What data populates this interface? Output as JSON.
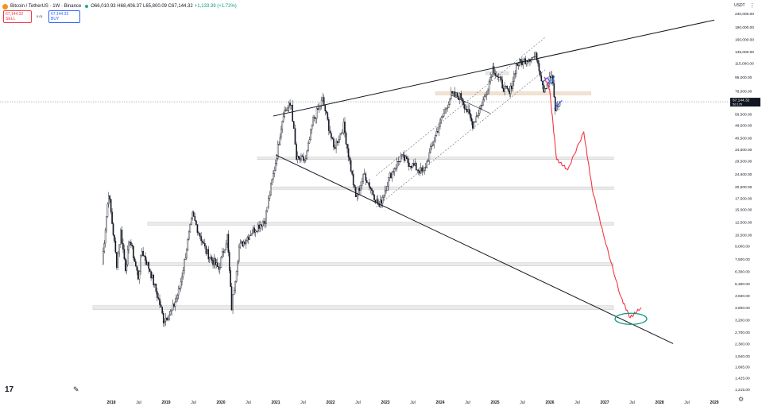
{
  "header": {
    "symbol": "Bitcoin / TetherUS · 1W · Binance",
    "ohlc": "O66,010.93 H68,406.37 L65,800.09 C67,144.32",
    "change": "+1,133.39 (+1.72%)",
    "sell_price": "67,144.32",
    "sell_label": "SELL",
    "buy_price": "67,144.33",
    "buy_label": "BUY",
    "spread": "0.01"
  },
  "currency": "USDT",
  "colors": {
    "candle": "#131722",
    "projection": "#f23645",
    "blue_marks": "#2962ff",
    "ellipse": "#089981",
    "zone": "#d9d9d9",
    "orange_zone": "#f3c89d",
    "price_label_bg": "#131722"
  },
  "chart_data": {
    "type": "line",
    "scale": "log",
    "title": "",
    "xlabel": "",
    "ylabel": "",
    "x_ticks": [
      "2018",
      "Jul",
      "2019",
      "Jul",
      "2020",
      "Jul",
      "2021",
      "Jul",
      "2022",
      "Jul",
      "2023",
      "Jul",
      "2024",
      "Jul",
      "2025",
      "Jul",
      "2026",
      "Jul",
      "2027",
      "Jul",
      "2028",
      "Jul",
      "2029"
    ],
    "y_ticks": [
      "230,000.00",
      "190,000.00",
      "160,000.00",
      "135,000.00",
      "115,000.00",
      "95,000.00",
      "78,000.00",
      "67,144.32",
      "56,500.00",
      "48,500.00",
      "40,500.00",
      "34,500.00",
      "29,500.00",
      "24,500.00",
      "20,500.00",
      "17,500.00",
      "15,000.00",
      "12,500.00",
      "10,500.00",
      "9,000.00",
      "7,500.00",
      "6,300.00",
      "5,300.00",
      "4,500.00",
      "3,800.00",
      "3,200.00",
      "2,700.00",
      "2,300.00",
      "1,940.00",
      "1,665.00",
      "1,425.00",
      "1,215.00"
    ],
    "current_price": "67,144.32",
    "current_sub": "5d 17h",
    "ylim": [
      1215,
      230000
    ],
    "series": [
      {
        "type": "candles",
        "values": [
          [
            "2017-11-01",
            7000
          ],
          [
            "2017-12-15",
            19000
          ],
          [
            "2018-02-06",
            7000
          ],
          [
            "2018-03-05",
            11000
          ],
          [
            "2018-04-06",
            6600
          ],
          [
            "2018-05-05",
            9900
          ],
          [
            "2018-06-29",
            5800
          ],
          [
            "2018-07-25",
            8400
          ],
          [
            "2018-09-15",
            6400
          ],
          [
            "2018-11-20",
            4000
          ],
          [
            "2018-12-15",
            3200
          ],
          [
            "2019-02-08",
            3600
          ],
          [
            "2019-04-02",
            5000
          ],
          [
            "2019-06-26",
            13800
          ],
          [
            "2019-09-25",
            8300
          ],
          [
            "2019-12-18",
            6500
          ],
          [
            "2020-02-13",
            10300
          ],
          [
            "2020-03-13",
            3800
          ],
          [
            "2020-05-01",
            8800
          ],
          [
            "2020-07-27",
            11000
          ],
          [
            "2020-10-21",
            13000
          ],
          [
            "2020-12-31",
            29000
          ],
          [
            "2021-02-21",
            58000
          ],
          [
            "2021-04-14",
            64800
          ],
          [
            "2021-05-19",
            30000
          ],
          [
            "2021-07-20",
            29800
          ],
          [
            "2021-09-07",
            52000
          ],
          [
            "2021-11-10",
            69000
          ],
          [
            "2022-01-22",
            35000
          ],
          [
            "2022-03-29",
            48000
          ],
          [
            "2022-06-18",
            17600
          ],
          [
            "2022-08-15",
            24400
          ],
          [
            "2022-11-21",
            15500
          ],
          [
            "2023-01-30",
            23800
          ],
          [
            "2023-04-14",
            31000
          ],
          [
            "2023-09-11",
            24900
          ],
          [
            "2023-12-08",
            44000
          ],
          [
            "2024-03-14",
            73800
          ],
          [
            "2024-05-20",
            71900
          ],
          [
            "2024-08-05",
            49000
          ],
          [
            "2024-10-29",
            73500
          ],
          [
            "2024-12-17",
            108000
          ],
          [
            "2025-02-26",
            82000
          ],
          [
            "2025-04-07",
            74500
          ],
          [
            "2025-05-22",
            112000
          ],
          [
            "2025-08-14",
            124000
          ],
          [
            "2025-10-06",
            126000
          ],
          [
            "2025-11-21",
            80500
          ],
          [
            "2026-01-14",
            97000
          ],
          [
            "2026-02-06",
            60000
          ],
          [
            "2026-03-08",
            67144
          ]
        ]
      },
      {
        "type": "projection",
        "values": [
          [
            "2025-11-25",
            95000
          ],
          [
            "2025-12-30",
            80000
          ],
          [
            "2026-02-15",
            30000
          ],
          [
            "2026-04-30",
            26000
          ],
          [
            "2026-08-15",
            44000
          ],
          [
            "2026-10-10",
            20000
          ],
          [
            "2026-12-30",
            10000
          ],
          [
            "2027-04-15",
            4500
          ],
          [
            "2027-06-20",
            3300
          ],
          [
            "2027-09-01",
            3800
          ]
        ]
      },
      {
        "type": "resistance_trendline",
        "values": [
          [
            "2020-12-15",
            55000
          ],
          [
            "2029-01-01",
            210000
          ]
        ]
      },
      {
        "type": "support_trendline",
        "values": [
          [
            "2021-01-01",
            32000
          ],
          [
            "2028-04-01",
            2300
          ]
        ]
      },
      {
        "type": "channel_lower",
        "values": [
          [
            "2022-11-01",
            15500
          ],
          [
            "2025-12-01",
            105000
          ]
        ]
      },
      {
        "type": "channel_upper",
        "values": [
          [
            "2022-11-01",
            24000
          ],
          [
            "2025-12-01",
            165000
          ]
        ]
      }
    ],
    "zones": [
      {
        "label": "zone-1",
        "range": [
          3700,
          3900
        ],
        "x_range": [
          "2017-09-01",
          "2027-03-01"
        ]
      },
      {
        "label": "zone-2",
        "range": [
          6800,
          7100
        ],
        "x_range": [
          "2018-04-01",
          "2027-03-01"
        ]
      },
      {
        "label": "zone-3",
        "range": [
          12000,
          12500
        ],
        "x_range": [
          "2018-09-01",
          "2027-03-01"
        ]
      },
      {
        "label": "zone-4",
        "range": [
          19800,
          20500
        ],
        "x_range": [
          "2020-12-01",
          "2027-03-01"
        ]
      },
      {
        "label": "zone-5",
        "range": [
          30000,
          31000
        ],
        "x_range": [
          "2020-09-01",
          "2027-03-01"
        ]
      },
      {
        "label": "zone-6",
        "range": [
          74000,
          77000
        ],
        "x_range": [
          "2023-12-01",
          "2026-10-01"
        ]
      },
      {
        "label": "zone-7",
        "range": [
          98000,
          102000
        ],
        "x_range": [
          "2024-11-01",
          "2025-04-01"
        ]
      }
    ],
    "grid": false,
    "legend": "none"
  }
}
